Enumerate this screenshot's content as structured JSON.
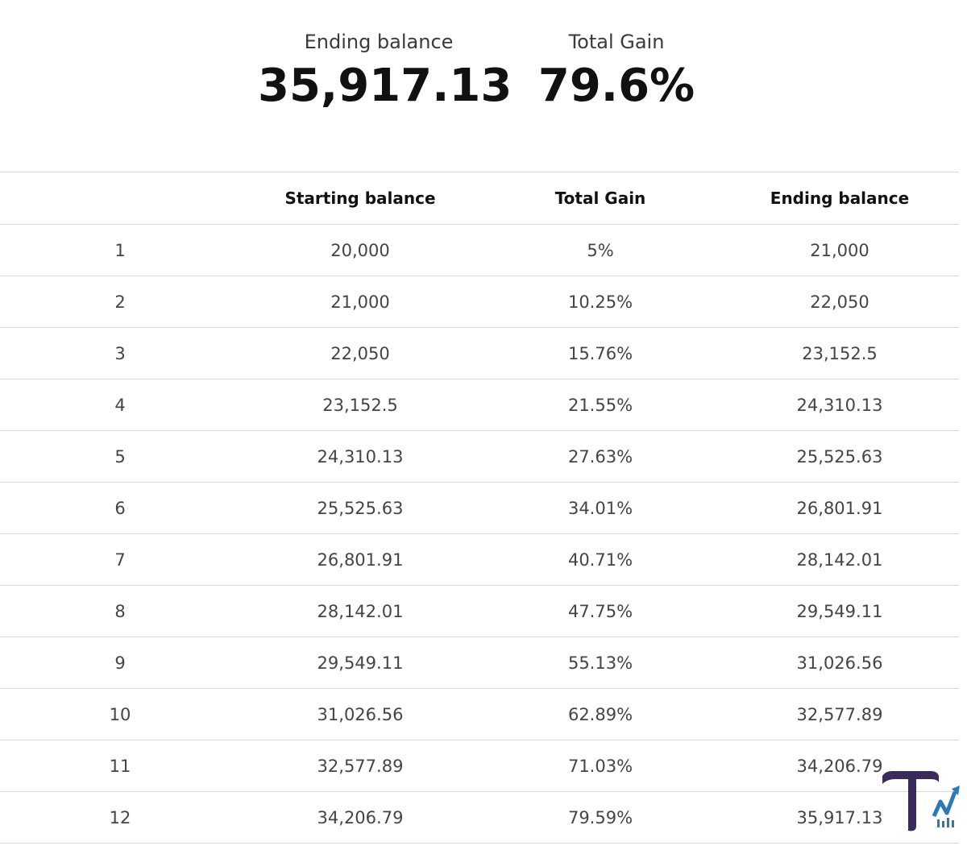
{
  "summary": {
    "ending_balance": {
      "label": "Ending balance",
      "value": "35,917.13"
    },
    "total_gain": {
      "label": "Total Gain",
      "value": "79.6%"
    }
  },
  "table": {
    "headers": [
      "",
      "Starting balance",
      "Total Gain",
      "Ending balance"
    ],
    "rows": [
      [
        "1",
        "20,000",
        "5%",
        "21,000"
      ],
      [
        "2",
        "21,000",
        "10.25%",
        "22,050"
      ],
      [
        "3",
        "22,050",
        "15.76%",
        "23,152.5"
      ],
      [
        "4",
        "23,152.5",
        "21.55%",
        "24,310.13"
      ],
      [
        "5",
        "24,310.13",
        "27.63%",
        "25,525.63"
      ],
      [
        "6",
        "25,525.63",
        "34.01%",
        "26,801.91"
      ],
      [
        "7",
        "26,801.91",
        "40.71%",
        "28,142.01"
      ],
      [
        "8",
        "28,142.01",
        "47.75%",
        "29,549.11"
      ],
      [
        "9",
        "29,549.11",
        "55.13%",
        "31,026.56"
      ],
      [
        "10",
        "31,026.56",
        "62.89%",
        "32,577.89"
      ],
      [
        "11",
        "32,577.89",
        "71.03%",
        "34,206.79"
      ],
      [
        "12",
        "34,206.79",
        "79.59%",
        "35,917.13"
      ]
    ]
  },
  "logo": {
    "icon": "tm-logo-icon",
    "colors": {
      "primary": "#3b2a5c",
      "accent": "#2a7ab8"
    }
  }
}
